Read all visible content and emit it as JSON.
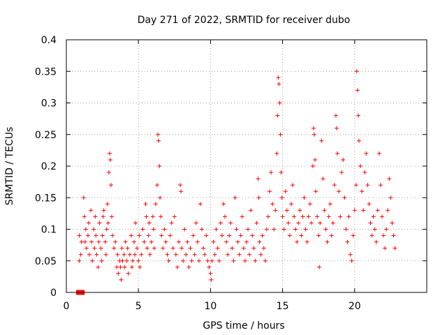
{
  "chart_data": {
    "type": "scatter",
    "title": "Day 271 of 2022, SRMTID for receiver dubo",
    "xlabel": "GPS time / hours",
    "ylabel": "SRMTID / TECUs",
    "xlim": [
      0,
      25
    ],
    "ylim": [
      0,
      0.4
    ],
    "xticks": [
      0,
      5,
      10,
      15,
      20
    ],
    "xtick_labels": [
      "0",
      "5",
      "10",
      "15",
      "20"
    ],
    "yticks": [
      0,
      0.05,
      0.1,
      0.15,
      0.2,
      0.25,
      0.3,
      0.35,
      0.4
    ],
    "ytick_labels": [
      "0",
      "0.05",
      "0.1",
      "0.15",
      "0.2",
      "0.25",
      "0.3",
      "0.35",
      "0.4"
    ],
    "grid": true,
    "marker": "plus",
    "color": "#ff0000",
    "zero_markers": {
      "marker": "square",
      "x": [
        0.85,
        1.1
      ],
      "y": [
        0,
        0
      ]
    },
    "series": [
      {
        "name": "SRMTID",
        "points": [
          [
            0.9,
            0.05
          ],
          [
            0.9,
            0.09
          ],
          [
            1.0,
            0.06
          ],
          [
            1.05,
            0.08
          ],
          [
            1.2,
            0.15
          ],
          [
            1.25,
            0.12
          ],
          [
            1.3,
            0.08
          ],
          [
            1.35,
            0.1
          ],
          [
            1.4,
            0.07
          ],
          [
            1.5,
            0.09
          ],
          [
            1.55,
            0.11
          ],
          [
            1.6,
            0.06
          ],
          [
            1.7,
            0.13
          ],
          [
            1.75,
            0.08
          ],
          [
            1.8,
            0.05
          ],
          [
            1.9,
            0.1
          ],
          [
            1.95,
            0.07
          ],
          [
            2.0,
            0.12
          ],
          [
            2.05,
            0.09
          ],
          [
            2.1,
            0.06
          ],
          [
            2.2,
            0.04
          ],
          [
            2.25,
            0.08
          ],
          [
            2.3,
            0.11
          ],
          [
            2.4,
            0.07
          ],
          [
            2.45,
            0.05
          ],
          [
            2.5,
            0.09
          ],
          [
            2.55,
            0.12
          ],
          [
            2.6,
            0.13
          ],
          [
            2.7,
            0.08
          ],
          [
            2.75,
            0.06
          ],
          [
            2.8,
            0.1
          ],
          [
            2.85,
            0.14
          ],
          [
            2.9,
            0.11
          ],
          [
            2.95,
            0.19
          ],
          [
            3.0,
            0.22
          ],
          [
            3.05,
            0.21
          ],
          [
            3.1,
            0.17
          ],
          [
            3.15,
            0.12
          ],
          [
            3.2,
            0.09
          ],
          [
            3.3,
            0.07
          ],
          [
            3.4,
            0.08
          ],
          [
            3.5,
            0.04
          ],
          [
            3.55,
            0.06
          ],
          [
            3.6,
            0.03
          ],
          [
            3.7,
            0.05
          ],
          [
            3.75,
            0.04
          ],
          [
            3.8,
            0.02
          ],
          [
            3.85,
            0.07
          ],
          [
            3.9,
            0.05
          ],
          [
            4.0,
            0.06
          ],
          [
            4.05,
            0.04
          ],
          [
            4.1,
            0.08
          ],
          [
            4.2,
            0.05
          ],
          [
            4.25,
            0.07
          ],
          [
            4.3,
            0.03
          ],
          [
            4.4,
            0.06
          ],
          [
            4.5,
            0.09
          ],
          [
            4.55,
            0.04
          ],
          [
            4.6,
            0.05
          ],
          [
            4.7,
            0.08
          ],
          [
            4.75,
            0.06
          ],
          [
            4.8,
            0.11
          ],
          [
            4.9,
            0.07
          ],
          [
            5.0,
            0.05
          ],
          [
            5.05,
            0.09
          ],
          [
            5.1,
            0.04
          ],
          [
            5.2,
            0.06
          ],
          [
            5.3,
            0.1
          ],
          [
            5.4,
            0.08
          ],
          [
            5.5,
            0.14
          ],
          [
            5.55,
            0.12
          ],
          [
            5.6,
            0.07
          ],
          [
            5.7,
            0.09
          ],
          [
            5.75,
            0.11
          ],
          [
            5.8,
            0.06
          ],
          [
            5.9,
            0.08
          ],
          [
            6.0,
            0.12
          ],
          [
            6.05,
            0.1
          ],
          [
            6.1,
            0.07
          ],
          [
            6.2,
            0.14
          ],
          [
            6.3,
            0.17
          ],
          [
            6.35,
            0.25
          ],
          [
            6.4,
            0.24
          ],
          [
            6.45,
            0.2
          ],
          [
            6.5,
            0.15
          ],
          [
            6.55,
            0.12
          ],
          [
            6.6,
            0.09
          ],
          [
            6.7,
            0.07
          ],
          [
            6.8,
            0.1
          ],
          [
            6.9,
            0.08
          ],
          [
            7.0,
            0.06
          ],
          [
            7.1,
            0.05
          ],
          [
            7.2,
            0.09
          ],
          [
            7.3,
            0.11
          ],
          [
            7.4,
            0.07
          ],
          [
            7.5,
            0.12
          ],
          [
            7.6,
            0.06
          ],
          [
            7.7,
            0.04
          ],
          [
            7.8,
            0.08
          ],
          [
            7.9,
            0.17
          ],
          [
            7.95,
            0.16
          ],
          [
            8.0,
            0.07
          ],
          [
            8.1,
            0.05
          ],
          [
            8.2,
            0.1
          ],
          [
            8.3,
            0.06
          ],
          [
            8.4,
            0.08
          ],
          [
            8.5,
            0.04
          ],
          [
            8.6,
            0.07
          ],
          [
            8.7,
            0.05
          ],
          [
            8.8,
            0.09
          ],
          [
            8.9,
            0.06
          ],
          [
            9.0,
            0.11
          ],
          [
            9.1,
            0.08
          ],
          [
            9.2,
            0.05
          ],
          [
            9.3,
            0.14
          ],
          [
            9.4,
            0.1
          ],
          [
            9.5,
            0.07
          ],
          [
            9.6,
            0.06
          ],
          [
            9.7,
            0.09
          ],
          [
            9.8,
            0.05
          ],
          [
            9.9,
            0.04
          ],
          [
            10.0,
            0.03
          ],
          [
            10.05,
            0.02
          ],
          [
            10.1,
            0.05
          ],
          [
            10.2,
            0.08
          ],
          [
            10.3,
            0.06
          ],
          [
            10.4,
            0.1
          ],
          [
            10.5,
            0.07
          ],
          [
            10.6,
            0.05
          ],
          [
            10.7,
            0.11
          ],
          [
            10.8,
            0.09
          ],
          [
            10.9,
            0.14
          ],
          [
            11.0,
            0.12
          ],
          [
            11.1,
            0.08
          ],
          [
            11.2,
            0.06
          ],
          [
            11.3,
            0.09
          ],
          [
            11.4,
            0.11
          ],
          [
            11.5,
            0.07
          ],
          [
            11.6,
            0.05
          ],
          [
            11.7,
            0.15
          ],
          [
            11.8,
            0.1
          ],
          [
            11.9,
            0.08
          ],
          [
            12.0,
            0.06
          ],
          [
            12.1,
            0.09
          ],
          [
            12.2,
            0.12
          ],
          [
            12.3,
            0.07
          ],
          [
            12.4,
            0.05
          ],
          [
            12.5,
            0.08
          ],
          [
            12.6,
            0.1
          ],
          [
            12.7,
            0.06
          ],
          [
            12.8,
            0.13
          ],
          [
            12.9,
            0.09
          ],
          [
            13.0,
            0.07
          ],
          [
            13.1,
            0.05
          ],
          [
            13.2,
            0.11
          ],
          [
            13.3,
            0.18
          ],
          [
            13.35,
            0.15
          ],
          [
            13.4,
            0.08
          ],
          [
            13.5,
            0.06
          ],
          [
            13.6,
            0.09
          ],
          [
            13.7,
            0.07
          ],
          [
            13.8,
            0.05
          ],
          [
            13.9,
            0.1
          ],
          [
            14.0,
            0.12
          ],
          [
            14.1,
            0.16
          ],
          [
            14.2,
            0.19
          ],
          [
            14.3,
            0.14
          ],
          [
            14.4,
            0.1
          ],
          [
            14.5,
            0.13
          ],
          [
            14.6,
            0.22
          ],
          [
            14.65,
            0.28
          ],
          [
            14.7,
            0.34
          ],
          [
            14.75,
            0.33
          ],
          [
            14.8,
            0.3
          ],
          [
            14.85,
            0.25
          ],
          [
            14.9,
            0.19
          ],
          [
            14.95,
            0.15
          ],
          [
            15.0,
            0.12
          ],
          [
            15.1,
            0.1
          ],
          [
            15.2,
            0.16
          ],
          [
            15.3,
            0.13
          ],
          [
            15.4,
            0.11
          ],
          [
            15.5,
            0.09
          ],
          [
            15.6,
            0.14
          ],
          [
            15.7,
            0.17
          ],
          [
            15.8,
            0.12
          ],
          [
            15.9,
            0.1
          ],
          [
            16.0,
            0.08
          ],
          [
            16.1,
            0.11
          ],
          [
            16.2,
            0.13
          ],
          [
            16.3,
            0.09
          ],
          [
            16.4,
            0.12
          ],
          [
            16.5,
            0.15
          ],
          [
            16.6,
            0.1
          ],
          [
            16.7,
            0.08
          ],
          [
            16.8,
            0.12
          ],
          [
            16.9,
            0.14
          ],
          [
            17.0,
            0.11
          ],
          [
            17.1,
            0.2
          ],
          [
            17.15,
            0.26
          ],
          [
            17.2,
            0.25
          ],
          [
            17.25,
            0.21
          ],
          [
            17.3,
            0.16
          ],
          [
            17.4,
            0.12
          ],
          [
            17.5,
            0.09
          ],
          [
            17.55,
            0.04
          ],
          [
            17.6,
            0.11
          ],
          [
            17.7,
            0.24
          ],
          [
            17.8,
            0.18
          ],
          [
            17.9,
            0.13
          ],
          [
            18.0,
            0.1
          ],
          [
            18.1,
            0.08
          ],
          [
            18.2,
            0.12
          ],
          [
            18.3,
            0.14
          ],
          [
            18.4,
            0.09
          ],
          [
            18.5,
            0.11
          ],
          [
            18.6,
            0.17
          ],
          [
            18.7,
            0.28
          ],
          [
            18.75,
            0.26
          ],
          [
            18.8,
            0.22
          ],
          [
            18.9,
            0.16
          ],
          [
            19.0,
            0.12
          ],
          [
            19.1,
            0.19
          ],
          [
            19.2,
            0.21
          ],
          [
            19.3,
            0.15
          ],
          [
            19.4,
            0.1
          ],
          [
            19.5,
            0.08
          ],
          [
            19.6,
            0.12
          ],
          [
            19.7,
            0.06
          ],
          [
            19.8,
            0.05
          ],
          [
            19.9,
            0.09
          ],
          [
            20.0,
            0.13
          ],
          [
            20.1,
            0.17
          ],
          [
            20.15,
            0.35
          ],
          [
            20.2,
            0.32
          ],
          [
            20.25,
            0.28
          ],
          [
            20.3,
            0.24
          ],
          [
            20.4,
            0.2
          ],
          [
            20.5,
            0.16
          ],
          [
            20.6,
            0.13
          ],
          [
            20.7,
            0.19
          ],
          [
            20.8,
            0.22
          ],
          [
            20.9,
            0.17
          ],
          [
            21.0,
            0.14
          ],
          [
            21.1,
            0.11
          ],
          [
            21.2,
            0.09
          ],
          [
            21.3,
            0.12
          ],
          [
            21.4,
            0.1
          ],
          [
            21.5,
            0.08
          ],
          [
            21.6,
            0.13
          ],
          [
            21.7,
            0.22
          ],
          [
            21.8,
            0.17
          ],
          [
            21.9,
            0.12
          ],
          [
            22.0,
            0.09
          ],
          [
            22.1,
            0.07
          ],
          [
            22.2,
            0.1
          ],
          [
            22.3,
            0.13
          ],
          [
            22.4,
            0.18
          ],
          [
            22.5,
            0.15
          ],
          [
            22.6,
            0.11
          ],
          [
            22.7,
            0.09
          ],
          [
            22.8,
            0.07
          ]
        ]
      }
    ]
  }
}
